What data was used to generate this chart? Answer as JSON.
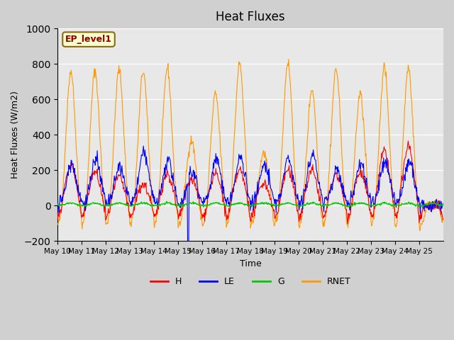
{
  "title": "Heat Fluxes",
  "ylabel": "Heat Fluxes (W/m2)",
  "xlabel": "Time",
  "annotation": "EP_level1",
  "ylim": [
    -200,
    1000
  ],
  "yticks": [
    -200,
    0,
    200,
    400,
    600,
    800,
    1000
  ],
  "colors": {
    "H": "#ff0000",
    "LE": "#0000ff",
    "G": "#00cc00",
    "RNET": "#ff9900"
  },
  "fig_facecolor": "#d0d0d0",
  "ax_facecolor": "#e8e8e8",
  "n_days": 16,
  "n_points_per_day": 48,
  "xticklabels": [
    "May 10",
    "May 11",
    "May 12",
    "May 13",
    "May 14",
    "May 15",
    "May 16",
    "May 17",
    "May 18",
    "May 19",
    "May 20",
    "May 21",
    "May 22",
    "May 23",
    "May 24",
    "May 25"
  ]
}
